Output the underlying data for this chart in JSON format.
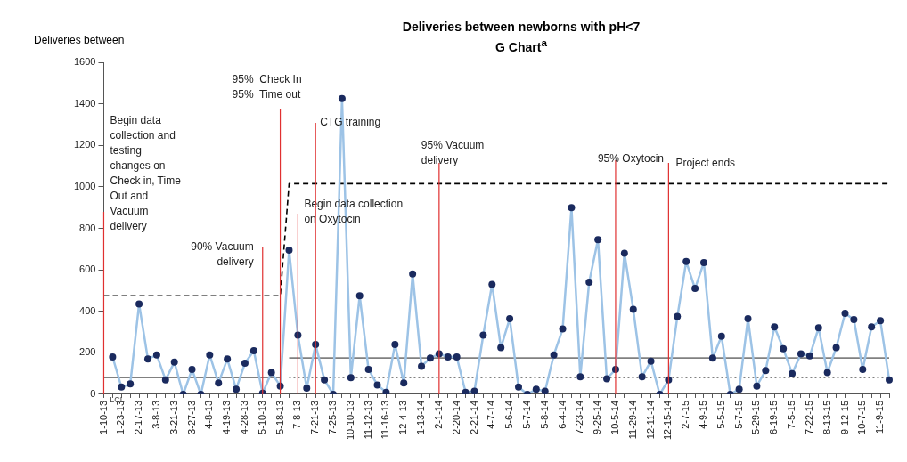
{
  "chart_data": {
    "type": "line",
    "title": "Deliveries between newborns with pH<7",
    "subtitle": "G Chart$^{a}$",
    "ylabel": "Deliveries between",
    "categories": [
      "1-10-13",
      null,
      "1-23-13",
      null,
      "2-17-13",
      null,
      "3-8-13",
      null,
      "3-21-13",
      null,
      "3-27-13",
      null,
      "4-8-13",
      null,
      "4-19-13",
      null,
      "4-28-13",
      null,
      "5-10-13",
      null,
      "5-18-13",
      null,
      "7-8-13",
      null,
      "7-21-13",
      null,
      "7-25-13",
      null,
      "10-10-13",
      null,
      "11-12-13",
      null,
      "11-16-13",
      null,
      "12-4-13",
      null,
      "1-13-14",
      null,
      "2-1-14",
      null,
      "2-20-14",
      null,
      "2-21-14",
      null,
      "4-7-14",
      null,
      "5-6-14",
      null,
      "5-7-14",
      null,
      "5-8-14",
      null,
      "6-4-14",
      null,
      "7-23-14",
      null,
      "9-25-14",
      null,
      "10-5-14",
      null,
      "11-29-14",
      null,
      "12-11-14",
      null,
      "12-15-14",
      null,
      "2-7-15",
      null,
      "4-9-15",
      null,
      "5-5-15",
      null,
      "5-7-15",
      null,
      "5-29-15",
      null,
      "6-19-15",
      null,
      "7-5-15",
      null,
      "7-22-15",
      null,
      "8-13-15",
      null,
      "9-12-15",
      null,
      "10-7-15",
      null,
      "11-9-15",
      null
    ],
    "series": [
      {
        "color": "#9dc3e6",
        "marker": "circle",
        "line_style": "solid",
        "values": [
          null,
          180,
          35,
          50,
          435,
          170,
          190,
          70,
          155,
          0,
          120,
          0,
          190,
          55,
          170,
          25,
          150,
          210,
          5,
          105,
          40,
          695,
          285,
          30,
          240,
          70,
          0,
          1425,
          80,
          475,
          120,
          45,
          10,
          240,
          55,
          580,
          135,
          175,
          195,
          180,
          180,
          10,
          15,
          285,
          530,
          225,
          365,
          35,
          0,
          25,
          15,
          190,
          315,
          900,
          85,
          540,
          745,
          75,
          120,
          680,
          410,
          85,
          160,
          0,
          70,
          375,
          640,
          510,
          635,
          175,
          280,
          0,
          25,
          365,
          40,
          115,
          325,
          220,
          100,
          195,
          185,
          320,
          105,
          225,
          390,
          360,
          120,
          325,
          355,
          70
        ]
      },
      {
        "color": "#000000",
        "marker": "none",
        "line_style": "dashed",
        "values": [
          475,
          475,
          475,
          475,
          475,
          475,
          475,
          475,
          475,
          475,
          475,
          475,
          475,
          475,
          475,
          475,
          475,
          475,
          475,
          475,
          475,
          1015,
          1015,
          1015,
          1015,
          1015,
          1015,
          1015,
          1015,
          1015,
          1015,
          1015,
          1015,
          1015,
          1015,
          1015,
          1015,
          1015,
          1015,
          1015,
          1015,
          1015,
          1015,
          1015,
          1015,
          1015,
          1015,
          1015,
          1015,
          1015,
          1015,
          1015,
          1015,
          1015,
          1015,
          1015,
          1015,
          1015,
          1015,
          1015,
          1015,
          1015,
          1015,
          1015,
          1015,
          1015,
          1015,
          1015,
          1015,
          1015,
          1015,
          1015,
          1015,
          1015,
          1015,
          1015,
          1015,
          1015,
          1015,
          1015,
          1015,
          1015,
          1015,
          1015,
          1015,
          1015,
          1015,
          1015,
          1015,
          1015
        ]
      },
      {
        "color": "#808080",
        "marker": "none",
        "line_style": "solid",
        "values": [
          80,
          80,
          80,
          80,
          80,
          80,
          80,
          80,
          80,
          80,
          80,
          80,
          80,
          80,
          80,
          80,
          80,
          80,
          80,
          80,
          80,
          null,
          null,
          null,
          null,
          null,
          null,
          null,
          null,
          null,
          null,
          null,
          null,
          null,
          null,
          null,
          null,
          null,
          null,
          null,
          null,
          null,
          null,
          null,
          null,
          null,
          null,
          null,
          null,
          null,
          null,
          null,
          null,
          null,
          null,
          null,
          null,
          null,
          null,
          null,
          null,
          null,
          null,
          null,
          null,
          null,
          null,
          null,
          null,
          null,
          null,
          null,
          null,
          null,
          null,
          null,
          null,
          null,
          null,
          null,
          null,
          null,
          null,
          null,
          null,
          null,
          null,
          null,
          null,
          null
        ]
      },
      {
        "color": "#808080",
        "marker": "none",
        "line_style": "solid",
        "values": [
          null,
          null,
          null,
          null,
          null,
          null,
          null,
          null,
          null,
          null,
          null,
          null,
          null,
          null,
          null,
          null,
          null,
          null,
          null,
          null,
          null,
          175,
          175,
          175,
          175,
          175,
          175,
          175,
          175,
          175,
          175,
          175,
          175,
          175,
          175,
          175,
          175,
          175,
          175,
          175,
          175,
          175,
          175,
          175,
          175,
          175,
          175,
          175,
          175,
          175,
          175,
          175,
          175,
          175,
          175,
          175,
          175,
          175,
          175,
          175,
          175,
          175,
          175,
          175,
          175,
          175,
          175,
          175,
          175,
          175,
          175,
          175,
          175,
          175,
          175,
          175,
          175,
          175,
          175,
          175,
          175,
          175,
          175,
          175,
          175,
          175,
          175,
          175,
          175,
          175
        ]
      },
      {
        "color": "#808080",
        "marker": "none",
        "line_style": "dotted",
        "values": [
          null,
          null,
          null,
          null,
          null,
          null,
          null,
          null,
          null,
          null,
          null,
          null,
          null,
          null,
          null,
          null,
          null,
          null,
          null,
          null,
          null,
          80,
          80,
          80,
          80,
          80,
          80,
          80,
          80,
          80,
          80,
          80,
          80,
          80,
          80,
          80,
          80,
          80,
          80,
          80,
          80,
          80,
          80,
          80,
          80,
          80,
          80,
          80,
          80,
          80,
          80,
          80,
          80,
          80,
          80,
          80,
          80,
          80,
          80,
          80,
          80,
          80,
          80,
          80,
          80,
          80,
          80,
          80,
          80,
          80,
          80,
          80,
          80,
          80,
          80,
          80,
          80,
          80,
          80,
          80,
          80,
          80,
          80,
          80,
          80,
          80,
          80,
          80,
          80,
          80
        ]
      }
    ],
    "ylim": [
      0,
      1600
    ],
    "yticks": [
      0,
      200,
      400,
      600,
      800,
      1000,
      1200,
      1400,
      1600
    ],
    "grid": false,
    "legend": false,
    "ref_lines": [
      {
        "axis": "x",
        "value": "1-10-13",
        "label": "Begin data\ncollection and\ntesting\nchanges on\nCheck in, Time\nOut and\nVacuum\ndelivery",
        "color": "#e03030"
      },
      {
        "axis": "x",
        "value": "5-10-13",
        "label": "90% Vacuum\ndelivery",
        "color": "#e03030"
      },
      {
        "axis": "x",
        "value": "5-18-13",
        "label": "95%  Check In\n95%  Time out",
        "color": "#e03030"
      },
      {
        "axis": "x",
        "value": "7-8-13",
        "label": "Begin data collection\non Oxytocin",
        "color": "#e03030"
      },
      {
        "axis": "x",
        "value": "7-21-13",
        "label": "CTG training",
        "color": "#e03030"
      },
      {
        "axis": "x",
        "value": "2-1-14",
        "label": "95% Vacuum\ndelivery",
        "color": "#e03030"
      },
      {
        "axis": "x",
        "value": "10-5-14",
        "label": "95% Oxytocin",
        "color": "#e03030"
      },
      {
        "axis": "x",
        "value": "12-15-14",
        "label": "Project ends",
        "color": "#e03030"
      }
    ],
    "annotations": [
      {
        "text": "LCL",
        "x": "1-10-13",
        "y": 0
      }
    ]
  }
}
